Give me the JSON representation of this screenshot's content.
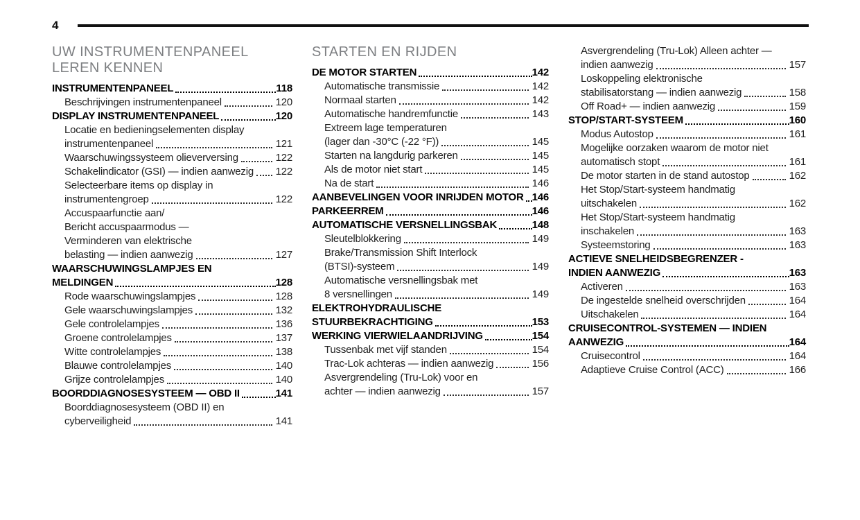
{
  "page": {
    "number": "4"
  },
  "colors": {
    "text": "#1f1f1f",
    "bold_text": "#000000",
    "heading_gray": "#7d7f82",
    "rule": "#111111",
    "background": "#ffffff"
  },
  "columns": [
    {
      "heading": "UW INSTRUMENTENPANEEL LEREN KENNEN",
      "entries": [
        {
          "text": "INSTRUMENTENPANEEL",
          "page": "118",
          "bold": true
        },
        {
          "text": "Beschrijvingen instrumentenpaneel",
          "page": "120",
          "indent": true
        },
        {
          "text": "DISPLAY INSTRUMENTENPANEEL",
          "page": "120",
          "bold": true
        },
        {
          "text": "Locatie en bedieningselementen display",
          "indent": true
        },
        {
          "text": "instrumentenpaneel",
          "page": "121",
          "indent": true
        },
        {
          "text": "Waarschuwingssysteem olieverversing",
          "page": "122",
          "indent": true
        },
        {
          "text": "Schakelindicator (GSI) — indien aanwezig",
          "page": "122",
          "indent": true
        },
        {
          "text": "Selecteerbare items op display in",
          "indent": true
        },
        {
          "text": "instrumentengroep",
          "page": "122",
          "indent": true
        },
        {
          "text": "Accuspaarfunctie aan/",
          "indent": true
        },
        {
          "text": "Bericht accuspaarmodus —",
          "indent": true
        },
        {
          "text": "Verminderen van elektrische",
          "indent": true
        },
        {
          "text": "belasting — indien aanwezig",
          "page": "127",
          "indent": true
        },
        {
          "text": "WAARSCHUWINGSLAMPJES EN",
          "bold": true
        },
        {
          "text": "MELDINGEN",
          "page": "128",
          "bold": true
        },
        {
          "text": "Rode waarschuwingslampjes",
          "page": "128",
          "indent": true
        },
        {
          "text": "Gele waarschuwingslampjes",
          "page": "132",
          "indent": true
        },
        {
          "text": "Gele controlelampjes",
          "page": "136",
          "indent": true
        },
        {
          "text": "Groene controlelampjes",
          "page": "137",
          "indent": true
        },
        {
          "text": "Witte controlelampjes",
          "page": "138",
          "indent": true
        },
        {
          "text": "Blauwe controlelampjes",
          "page": "140",
          "indent": true
        },
        {
          "text": "Grijze controlelampjes",
          "page": "140",
          "indent": true
        },
        {
          "text": "BOORDDIAGNOSESYSTEEM — OBD II",
          "page": "141",
          "bold": true
        },
        {
          "text": "Boorddiagnosesysteem (OBD II) en",
          "indent": true
        },
        {
          "text": "cyberveiligheid",
          "page": "141",
          "indent": true
        }
      ]
    },
    {
      "heading": "STARTEN EN RIJDEN",
      "entries": [
        {
          "text": "DE MOTOR STARTEN",
          "page": "142",
          "bold": true
        },
        {
          "text": "Automatische transmissie",
          "page": "142",
          "indent": true
        },
        {
          "text": "Normaal starten",
          "page": "142",
          "indent": true
        },
        {
          "text": "Automatische handremfunctie",
          "page": "143",
          "indent": true
        },
        {
          "text": "Extreem lage temperaturen",
          "indent": true
        },
        {
          "text": "(lager dan -30°C (-22 °F))",
          "page": "145",
          "indent": true
        },
        {
          "text": "Starten na langdurig parkeren",
          "page": "145",
          "indent": true
        },
        {
          "text": "Als de motor niet start",
          "page": "145",
          "indent": true
        },
        {
          "text": "Na de start",
          "page": "146",
          "indent": true
        },
        {
          "text": "AANBEVELINGEN VOOR INRIJDEN MOTOR",
          "page": "146",
          "bold": true
        },
        {
          "text": "PARKEERREM",
          "page": "146",
          "bold": true
        },
        {
          "text": "AUTOMATISCHE VERSNELLINGSBAK",
          "page": "148",
          "bold": true
        },
        {
          "text": "Sleutelblokkering",
          "page": "149",
          "indent": true
        },
        {
          "text": "Brake/Transmission Shift Interlock",
          "indent": true
        },
        {
          "text": "(BTSI)-systeem",
          "page": "149",
          "indent": true
        },
        {
          "text": "Automatische versnellingsbak met",
          "indent": true
        },
        {
          "text": "8 versnellingen",
          "page": "149",
          "indent": true
        },
        {
          "text": "ELEKTROHYDRAULISCHE",
          "bold": true
        },
        {
          "text": "STUURBEKRACHTIGING",
          "page": "153",
          "bold": true
        },
        {
          "text": "WERKING VIERWIELAANDRIJVING",
          "page": "154",
          "bold": true
        },
        {
          "text": "Tussenbak met vijf standen",
          "page": "154",
          "indent": true
        },
        {
          "text": "Trac-Lok achteras — indien aanwezig",
          "page": "156",
          "indent": true
        },
        {
          "text": "Asvergrendeling (Tru-Lok) voor en",
          "indent": true
        },
        {
          "text": "achter — indien aanwezig",
          "page": "157",
          "indent": true
        }
      ]
    },
    {
      "heading": "",
      "entries": [
        {
          "text": "Asvergrendeling (Tru-Lok) Alleen achter —",
          "indent": true
        },
        {
          "text": "indien aanwezig",
          "page": "157",
          "indent": true
        },
        {
          "text": "Loskoppeling elektronische",
          "indent": true
        },
        {
          "text": "stabilisatorstang — indien aanwezig",
          "page": "158",
          "indent": true
        },
        {
          "text": "Off Road+ — indien aanwezig",
          "page": "159",
          "indent": true
        },
        {
          "text": "STOP/START-SYSTEEM",
          "page": "160",
          "bold": true
        },
        {
          "text": "Modus Autostop",
          "page": "161",
          "indent": true
        },
        {
          "text": "Mogelijke oorzaken waarom de motor niet",
          "indent": true
        },
        {
          "text": "automatisch stopt",
          "page": "161",
          "indent": true
        },
        {
          "text": "De motor starten in de stand autostop",
          "page": "162",
          "indent": true
        },
        {
          "text": "Het Stop/Start-systeem handmatig",
          "indent": true
        },
        {
          "text": "uitschakelen",
          "page": "162",
          "indent": true
        },
        {
          "text": "Het Stop/Start-systeem handmatig",
          "indent": true
        },
        {
          "text": "inschakelen",
          "page": "163",
          "indent": true
        },
        {
          "text": "Systeemstoring",
          "page": "163",
          "indent": true
        },
        {
          "text": "ACTIEVE SNELHEIDSBEGRENZER -",
          "bold": true
        },
        {
          "text": "INDIEN AANWEZIG",
          "page": "163",
          "bold": true
        },
        {
          "text": "Activeren",
          "page": "163",
          "indent": true
        },
        {
          "text": "De ingestelde snelheid overschrijden",
          "page": "164",
          "indent": true
        },
        {
          "text": "Uitschakelen",
          "page": "164",
          "indent": true
        },
        {
          "text": "CRUISECONTROL-SYSTEMEN — INDIEN",
          "bold": true
        },
        {
          "text": "AANWEZIG",
          "page": "164",
          "bold": true
        },
        {
          "text": "Cruisecontrol",
          "page": "164",
          "indent": true
        },
        {
          "text": "Adaptieve Cruise Control (ACC)",
          "page": "166",
          "indent": true
        }
      ]
    }
  ]
}
